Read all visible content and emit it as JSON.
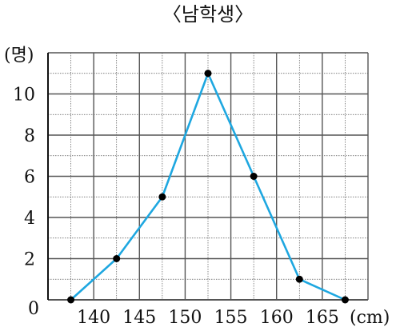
{
  "chart_data": {
    "type": "line",
    "title": "〈남학생〉",
    "ylabel": "(명)",
    "xlabel": "(cm)",
    "origin_label": "0",
    "x_ticks": [
      140,
      145,
      150,
      155,
      160,
      165
    ],
    "y_ticks": [
      2,
      4,
      6,
      8,
      10
    ],
    "xlim": [
      135,
      170
    ],
    "ylim": [
      0,
      12
    ],
    "grid": true,
    "points": [
      {
        "x": 137.5,
        "y": 0
      },
      {
        "x": 142.5,
        "y": 2
      },
      {
        "x": 147.5,
        "y": 5
      },
      {
        "x": 152.5,
        "y": 11
      },
      {
        "x": 157.5,
        "y": 6
      },
      {
        "x": 162.5,
        "y": 1
      },
      {
        "x": 167.5,
        "y": 0
      }
    ],
    "line_color": "#1ea7e0",
    "marker_color": "#000000",
    "grid_color": "#555555"
  }
}
